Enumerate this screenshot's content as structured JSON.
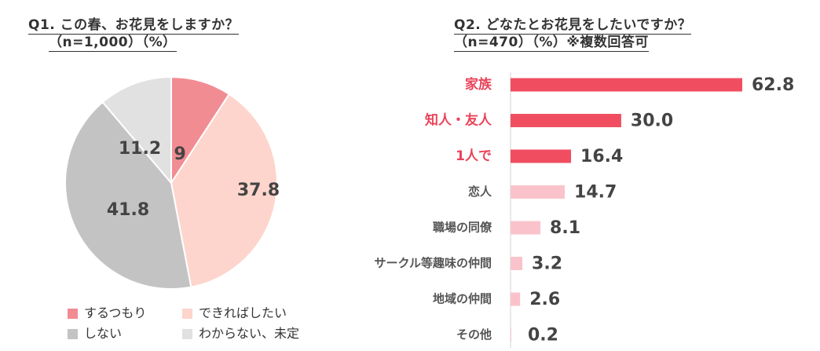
{
  "chart_data": [
    {
      "type": "pie",
      "title_line1": "Q1. この春、お花見をしますか？",
      "title_line2": "（n=1,000）（%）",
      "slices": [
        {
          "label": "するつもり",
          "value": 9.2,
          "value_text": "9.2",
          "color": "#F28C93"
        },
        {
          "label": "できればしたい",
          "value": 37.8,
          "value_text": "37.8",
          "color": "#FDD5CC"
        },
        {
          "label": "しない",
          "value": 41.8,
          "value_text": "41.8",
          "color": "#C3C3C3"
        },
        {
          "label": "わからない、未定",
          "value": 11.2,
          "value_text": "11.2",
          "color": "#E1E1E1"
        }
      ],
      "legend_placement": "bottom"
    },
    {
      "type": "bar",
      "orientation": "horizontal",
      "title_line1": "Q2. どなたとお花見をしたいですか？",
      "title_line2": "（n=470）（%）※複数回答可",
      "categories": [
        "家族",
        "知人・友人",
        "1人で",
        "恋人",
        "職場の同僚",
        "サークル等趣味の仲間",
        "地域の仲間",
        "その他"
      ],
      "values": [
        62.8,
        30.0,
        16.4,
        14.7,
        8.1,
        3.2,
        2.6,
        0.2
      ],
      "value_labels": [
        "62.8",
        "30.0",
        "16.4",
        "14.7",
        "8.1",
        "3.2",
        "2.6",
        "0.2"
      ],
      "highlight_count": 3,
      "highlight_color": "#F04E60",
      "highlight_label_color": "#E9445A",
      "base_color": "#FAC3CB",
      "label_color": "#555555"
    }
  ]
}
